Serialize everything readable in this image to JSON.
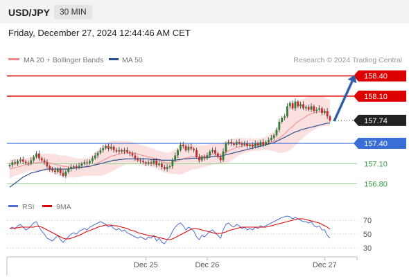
{
  "header": {
    "symbol": "USD/JPY",
    "timeframe": "30 MIN",
    "datetime": "Friday, December 27, 2024 12:44:46 AM CET"
  },
  "legend": {
    "ma20": "MA 20 + Bollinger Bands",
    "ma50": "MA 50",
    "credit": "Research © 2024 Trading Central",
    "rsi": "RSI",
    "ma9": "9MA"
  },
  "colors": {
    "resistance": "#dd0000",
    "support": "#3a6fd8",
    "target": "#2f9e3a",
    "current": "#222222",
    "arrow": "#2f5fa8",
    "ma20": "#f08a8a",
    "bands_fill": "#fbe0e0",
    "ma50": "#2a4f8f",
    "candle_up": "#2e7d32",
    "candle_down": "#c62828",
    "rsi": "#4f6fd0",
    "rsi_ma": "#dd0000"
  },
  "chart_data": [
    {
      "type": "candlestick",
      "y_range": [
        156.6,
        158.55
      ],
      "x_ticks": [
        "Dec 25",
        "Dec 26",
        "Dec 27"
      ],
      "levels": [
        {
          "label": "158.40",
          "value": 158.4,
          "kind": "resistance"
        },
        {
          "label": "158.10",
          "value": 158.1,
          "kind": "resistance"
        },
        {
          "label": "157.74",
          "value": 157.74,
          "kind": "current"
        },
        {
          "label": "157.40",
          "value": 157.4,
          "kind": "support"
        },
        {
          "label": "157.10",
          "value": 157.1,
          "kind": "target"
        },
        {
          "label": "156.80",
          "value": 156.8,
          "kind": "target"
        }
      ],
      "close": [
        157.08,
        157.12,
        157.1,
        157.14,
        157.16,
        157.13,
        157.11,
        157.1,
        157.15,
        157.2,
        157.25,
        157.18,
        157.15,
        157.12,
        157.06,
        157.02,
        157.0,
        156.98,
        157.02,
        156.96,
        156.92,
        156.98,
        157.02,
        157.05,
        157.06,
        157.04,
        157.07,
        157.1,
        157.12,
        157.11,
        157.14,
        157.18,
        157.22,
        157.26,
        157.3,
        157.33,
        157.36,
        157.32,
        157.35,
        157.3,
        157.28,
        157.3,
        157.28,
        157.3,
        157.27,
        157.25,
        157.22,
        157.18,
        157.15,
        157.14,
        157.12,
        157.1,
        157.12,
        157.1,
        157.15,
        157.08,
        157.1,
        157.05,
        157.02,
        157.05,
        157.06,
        157.15,
        157.22,
        157.3,
        157.38,
        157.36,
        157.3,
        157.35,
        157.32,
        157.3,
        157.2,
        157.15,
        157.2,
        157.18,
        157.22,
        157.28,
        157.3,
        157.25,
        157.2,
        157.15,
        157.28,
        157.4,
        157.42,
        157.4,
        157.38,
        157.42,
        157.4,
        157.38,
        157.4,
        157.36,
        157.38,
        157.35,
        157.4,
        157.37,
        157.42,
        157.38,
        157.42,
        157.45,
        157.48,
        157.52,
        157.6,
        157.72,
        157.78,
        157.8,
        157.95,
        158.0,
        157.92,
        158.02,
        157.95,
        157.98,
        157.92,
        157.94,
        157.9,
        157.95,
        157.88,
        157.9,
        157.92,
        157.85,
        157.88,
        157.8,
        157.74
      ],
      "ma20": [
        157.02,
        157.03,
        157.04,
        157.05,
        157.06,
        157.07,
        157.08,
        157.09,
        157.1,
        157.1,
        157.11,
        157.12,
        157.12,
        157.12,
        157.12,
        157.11,
        157.1,
        157.09,
        157.08,
        157.07,
        157.06,
        157.06,
        157.05,
        157.05,
        157.04,
        157.04,
        157.04,
        157.04,
        157.05,
        157.05,
        157.06,
        157.07,
        157.09,
        157.11,
        157.13,
        157.15,
        157.17,
        157.19,
        157.21,
        157.22,
        157.23,
        157.24,
        157.25,
        157.26,
        157.26,
        157.26,
        157.26,
        157.25,
        157.24,
        157.23,
        157.22,
        157.21,
        157.2,
        157.19,
        157.18,
        157.16,
        157.15,
        157.13,
        157.12,
        157.11,
        157.11,
        157.12,
        157.13,
        157.14,
        157.16,
        157.17,
        157.18,
        157.19,
        157.2,
        157.2,
        157.2,
        157.2,
        157.21,
        157.21,
        157.22,
        157.23,
        157.24,
        157.24,
        157.24,
        157.24,
        157.25,
        157.27,
        157.29,
        157.31,
        157.32,
        157.34,
        157.35,
        157.36,
        157.37,
        157.37,
        157.38,
        157.38,
        157.38,
        157.38,
        157.39,
        157.39,
        157.4,
        157.41,
        157.42,
        157.43,
        157.45,
        157.48,
        157.51,
        157.54,
        157.58,
        157.62,
        157.65,
        157.69,
        157.72,
        157.75,
        157.77,
        157.8,
        157.82,
        157.84,
        157.85,
        157.86,
        157.87,
        157.87,
        157.87,
        157.86,
        157.85
      ],
      "bb_width": [
        0.14,
        0.13,
        0.12,
        0.12,
        0.11,
        0.11,
        0.1,
        0.1,
        0.1,
        0.11,
        0.12,
        0.12,
        0.12,
        0.13,
        0.13,
        0.14,
        0.14,
        0.15,
        0.15,
        0.15,
        0.16,
        0.16,
        0.16,
        0.15,
        0.15,
        0.14,
        0.14,
        0.13,
        0.13,
        0.13,
        0.14,
        0.15,
        0.17,
        0.19,
        0.21,
        0.22,
        0.23,
        0.23,
        0.23,
        0.22,
        0.21,
        0.2,
        0.19,
        0.18,
        0.17,
        0.17,
        0.16,
        0.16,
        0.15,
        0.15,
        0.15,
        0.15,
        0.14,
        0.14,
        0.14,
        0.14,
        0.14,
        0.15,
        0.15,
        0.15,
        0.16,
        0.17,
        0.18,
        0.2,
        0.22,
        0.22,
        0.21,
        0.2,
        0.19,
        0.18,
        0.18,
        0.17,
        0.17,
        0.16,
        0.16,
        0.16,
        0.16,
        0.15,
        0.15,
        0.15,
        0.16,
        0.17,
        0.17,
        0.16,
        0.15,
        0.14,
        0.13,
        0.12,
        0.11,
        0.1,
        0.1,
        0.09,
        0.09,
        0.09,
        0.09,
        0.09,
        0.1,
        0.11,
        0.13,
        0.15,
        0.18,
        0.22,
        0.25,
        0.27,
        0.3,
        0.32,
        0.32,
        0.32,
        0.31,
        0.3,
        0.29,
        0.28,
        0.27,
        0.26,
        0.25,
        0.24,
        0.23,
        0.22,
        0.21,
        0.2,
        0.2
      ],
      "ma50": [
        156.75,
        156.78,
        156.81,
        156.84,
        156.87,
        156.9,
        156.92,
        156.94,
        156.96,
        156.97,
        156.98,
        156.99,
        157.0,
        157.01,
        157.02,
        157.02,
        157.02,
        157.02,
        157.02,
        157.02,
        157.02,
        157.02,
        157.02,
        157.03,
        157.03,
        157.04,
        157.04,
        157.05,
        157.05,
        157.06,
        157.06,
        157.07,
        157.08,
        157.09,
        157.1,
        157.11,
        157.12,
        157.13,
        157.14,
        157.15,
        157.15,
        157.16,
        157.16,
        157.17,
        157.17,
        157.17,
        157.17,
        157.17,
        157.17,
        157.17,
        157.17,
        157.17,
        157.17,
        157.16,
        157.16,
        157.16,
        157.16,
        157.15,
        157.15,
        157.15,
        157.15,
        157.15,
        157.15,
        157.16,
        157.16,
        157.17,
        157.17,
        157.17,
        157.18,
        157.18,
        157.18,
        157.18,
        157.19,
        157.19,
        157.19,
        157.2,
        157.2,
        157.21,
        157.21,
        157.21,
        157.22,
        157.23,
        157.24,
        157.25,
        157.26,
        157.27,
        157.28,
        157.29,
        157.3,
        157.31,
        157.32,
        157.33,
        157.34,
        157.35,
        157.36,
        157.37,
        157.38,
        157.39,
        157.4,
        157.41,
        157.43,
        157.45,
        157.47,
        157.49,
        157.51,
        157.53,
        157.55,
        157.57,
        157.58,
        157.6,
        157.61,
        157.62,
        157.63,
        157.64,
        157.65,
        157.66,
        157.67,
        157.68,
        157.69,
        157.7,
        157.7
      ]
    },
    {
      "type": "line",
      "name": "RSI",
      "y_range": [
        20,
        80
      ],
      "y_ticks": [
        70,
        50,
        30
      ],
      "x_ticks": [
        "Dec 25",
        "Dec 26",
        "Dec 27"
      ],
      "rsi": [
        58,
        60,
        57,
        62,
        64,
        60,
        56,
        58,
        62,
        66,
        68,
        60,
        54,
        50,
        44,
        42,
        40,
        44,
        48,
        42,
        38,
        42,
        46,
        50,
        52,
        50,
        54,
        56,
        58,
        56,
        60,
        62,
        64,
        66,
        68,
        66,
        64,
        60,
        62,
        58,
        56,
        58,
        54,
        56,
        52,
        50,
        48,
        46,
        44,
        46,
        44,
        42,
        46,
        44,
        48,
        40,
        44,
        38,
        36,
        42,
        46,
        54,
        60,
        64,
        66,
        62,
        56,
        60,
        58,
        54,
        46,
        42,
        48,
        46,
        50,
        54,
        56,
        52,
        48,
        44,
        56,
        64,
        66,
        62,
        60,
        64,
        62,
        58,
        60,
        56,
        58,
        56,
        60,
        58,
        62,
        60,
        62,
        64,
        66,
        68,
        70,
        72,
        74,
        75,
        76,
        75,
        72,
        74,
        72,
        70,
        68,
        68,
        66,
        68,
        62,
        60,
        62,
        56,
        56,
        48,
        44
      ],
      "ma9": [
        58,
        58,
        59,
        59,
        60,
        60,
        60,
        60,
        60,
        60,
        61,
        61,
        60,
        58,
        56,
        54,
        52,
        50,
        48,
        46,
        44,
        43,
        43,
        44,
        45,
        47,
        48,
        50,
        52,
        54,
        55,
        57,
        58,
        60,
        61,
        62,
        63,
        63,
        63,
        62,
        62,
        61,
        60,
        59,
        58,
        56,
        55,
        54,
        52,
        51,
        50,
        49,
        48,
        47,
        47,
        46,
        45,
        44,
        43,
        42,
        42,
        43,
        45,
        47,
        49,
        51,
        53,
        55,
        57,
        58,
        58,
        57,
        56,
        55,
        54,
        53,
        52,
        51,
        51,
        51,
        52,
        53,
        55,
        56,
        57,
        58,
        59,
        60,
        60,
        60,
        60,
        60,
        60,
        60,
        60,
        60,
        60,
        61,
        62,
        63,
        64,
        65,
        66,
        67,
        68,
        69,
        70,
        71,
        72,
        72,
        72,
        71,
        70,
        69,
        68,
        67,
        66,
        64,
        62,
        60,
        57
      ]
    }
  ]
}
